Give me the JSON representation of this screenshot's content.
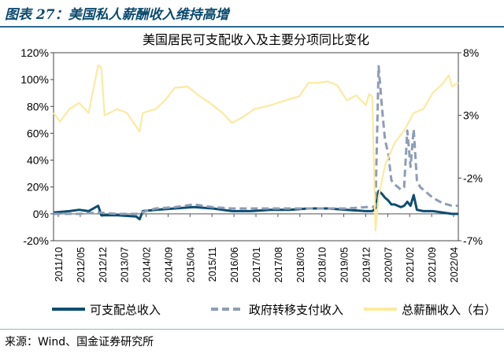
{
  "figure_title": "图表 27：美国私人薪酬收入维持高增",
  "source": "来源：Wind、国金证券研究所",
  "chart_data": {
    "type": "line",
    "title": "美国居民可支配收入及主要分项同比变化",
    "left_axis": {
      "min": -0.2,
      "max": 1.2,
      "ticks": [
        "-20%",
        "0%",
        "20%",
        "40%",
        "60%",
        "80%",
        "100%",
        "120%"
      ]
    },
    "right_axis": {
      "min": -7,
      "max": 8,
      "ticks": [
        "-7%",
        "-2%",
        "3%",
        "8%"
      ]
    },
    "x_range": [
      "2011-10",
      "2022-05"
    ],
    "x_tick_labels": [
      "2011/10",
      "2012/05",
      "2012/12",
      "2013/07",
      "2014/02",
      "2014/09",
      "2015/04",
      "2015/11",
      "2016/06",
      "2017/01",
      "2017/08",
      "2018/03",
      "2018/10",
      "2019/05",
      "2019/12",
      "2020/07",
      "2021/02",
      "2021/09",
      "2022/04"
    ],
    "legend_position": "bottom",
    "series": [
      {
        "name": "可支配总收入",
        "axis": "left",
        "color": "#0e4d72",
        "style": "solid",
        "points": [
          [
            "2011-10",
            0.01
          ],
          [
            "2012-03",
            0.02
          ],
          [
            "2012-06",
            0.03
          ],
          [
            "2012-09",
            0.02
          ],
          [
            "2012-12",
            0.06
          ],
          [
            "2013-01",
            -0.01
          ],
          [
            "2013-06",
            -0.01
          ],
          [
            "2013-12",
            -0.02
          ],
          [
            "2014-01",
            -0.04
          ],
          [
            "2014-02",
            0.02
          ],
          [
            "2014-06",
            0.03
          ],
          [
            "2014-12",
            0.04
          ],
          [
            "2015-06",
            0.05
          ],
          [
            "2015-12",
            0.04
          ],
          [
            "2016-06",
            0.02
          ],
          [
            "2016-12",
            0.02
          ],
          [
            "2017-06",
            0.03
          ],
          [
            "2017-12",
            0.03
          ],
          [
            "2018-06",
            0.04
          ],
          [
            "2018-12",
            0.04
          ],
          [
            "2019-06",
            0.03
          ],
          [
            "2019-12",
            0.02
          ],
          [
            "2020-01",
            0.02
          ],
          [
            "2020-02",
            0.02
          ],
          [
            "2020-03",
            0.04
          ],
          [
            "2020-04",
            0.17
          ],
          [
            "2020-05",
            0.15
          ],
          [
            "2020-06",
            0.12
          ],
          [
            "2020-07",
            0.1
          ],
          [
            "2020-08",
            0.07
          ],
          [
            "2020-09",
            0.07
          ],
          [
            "2020-10",
            0.06
          ],
          [
            "2020-11",
            0.05
          ],
          [
            "2020-12",
            0.06
          ],
          [
            "2021-01",
            0.09
          ],
          [
            "2021-02",
            0.06
          ],
          [
            "2021-03",
            0.14
          ],
          [
            "2021-04",
            0.03
          ],
          [
            "2021-06",
            0.02
          ],
          [
            "2021-09",
            0.02
          ],
          [
            "2021-12",
            0.01
          ],
          [
            "2022-03",
            0.0
          ],
          [
            "2022-05",
            0.0
          ]
        ]
      },
      {
        "name": "政府转移支付收入",
        "axis": "left",
        "color": "#8d9db5",
        "style": "dashed",
        "points": [
          [
            "2011-10",
            0.0
          ],
          [
            "2012-06",
            0.0
          ],
          [
            "2012-12",
            0.01
          ],
          [
            "2013-06",
            0.0
          ],
          [
            "2013-12",
            0.0
          ],
          [
            "2014-06",
            0.04
          ],
          [
            "2014-12",
            0.05
          ],
          [
            "2015-06",
            0.07
          ],
          [
            "2015-12",
            0.05
          ],
          [
            "2016-06",
            0.04
          ],
          [
            "2016-12",
            0.04
          ],
          [
            "2017-06",
            0.04
          ],
          [
            "2017-12",
            0.04
          ],
          [
            "2018-06",
            0.04
          ],
          [
            "2018-12",
            0.04
          ],
          [
            "2019-06",
            0.04
          ],
          [
            "2019-12",
            0.05
          ],
          [
            "2020-01",
            0.05
          ],
          [
            "2020-02",
            0.05
          ],
          [
            "2020-03",
            0.06
          ],
          [
            "2020-04",
            1.1
          ],
          [
            "2020-05",
            0.8
          ],
          [
            "2020-06",
            0.55
          ],
          [
            "2020-07",
            0.45
          ],
          [
            "2020-08",
            0.25
          ],
          [
            "2020-09",
            0.22
          ],
          [
            "2020-10",
            0.2
          ],
          [
            "2020-11",
            0.18
          ],
          [
            "2020-12",
            0.2
          ],
          [
            "2021-01",
            0.62
          ],
          [
            "2021-02",
            0.35
          ],
          [
            "2021-03",
            0.63
          ],
          [
            "2021-04",
            0.25
          ],
          [
            "2021-05",
            0.2
          ],
          [
            "2021-06",
            0.18
          ],
          [
            "2021-09",
            0.12
          ],
          [
            "2021-12",
            0.08
          ],
          [
            "2022-03",
            0.06
          ],
          [
            "2022-05",
            0.06
          ]
        ]
      },
      {
        "name": "总薪酬收入（右）",
        "axis": "right",
        "color": "#fbeaa0",
        "style": "solid",
        "points": [
          [
            "2011-10",
            3.2
          ],
          [
            "2011-12",
            2.5
          ],
          [
            "2012-03",
            3.5
          ],
          [
            "2012-06",
            4.0
          ],
          [
            "2012-09",
            3.2
          ],
          [
            "2012-12",
            7.0
          ],
          [
            "2013-01",
            6.8
          ],
          [
            "2013-02",
            3.0
          ],
          [
            "2013-06",
            3.5
          ],
          [
            "2013-09",
            3.2
          ],
          [
            "2014-01",
            1.7
          ],
          [
            "2014-02",
            3.2
          ],
          [
            "2014-06",
            3.5
          ],
          [
            "2014-09",
            4.2
          ],
          [
            "2014-12",
            5.2
          ],
          [
            "2015-04",
            5.3
          ],
          [
            "2015-08",
            4.5
          ],
          [
            "2015-11",
            4.0
          ],
          [
            "2016-03",
            3.2
          ],
          [
            "2016-06",
            2.4
          ],
          [
            "2016-09",
            2.8
          ],
          [
            "2017-01",
            3.5
          ],
          [
            "2017-06",
            3.8
          ],
          [
            "2017-12",
            4.3
          ],
          [
            "2018-03",
            4.5
          ],
          [
            "2018-06",
            5.6
          ],
          [
            "2018-09",
            5.6
          ],
          [
            "2018-12",
            5.7
          ],
          [
            "2019-03",
            5.4
          ],
          [
            "2019-06",
            4.2
          ],
          [
            "2019-09",
            4.6
          ],
          [
            "2019-12",
            3.8
          ],
          [
            "2020-01",
            4.7
          ],
          [
            "2020-02",
            4.5
          ],
          [
            "2020-03",
            -6.2
          ],
          [
            "2020-04",
            -3.5
          ],
          [
            "2020-06",
            -1.0
          ],
          [
            "2020-09",
            0.8
          ],
          [
            "2020-12",
            1.8
          ],
          [
            "2021-03",
            3.2
          ],
          [
            "2021-06",
            3.5
          ],
          [
            "2021-09",
            4.8
          ],
          [
            "2021-12",
            5.5
          ],
          [
            "2022-02",
            6.2
          ],
          [
            "2022-03",
            5.3
          ],
          [
            "2022-05",
            5.6
          ]
        ]
      }
    ]
  }
}
